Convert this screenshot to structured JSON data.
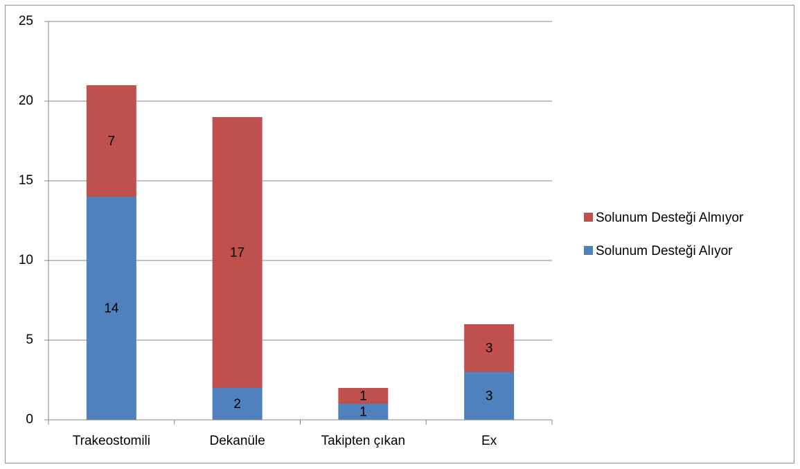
{
  "chart_data": {
    "type": "bar",
    "stacked": true,
    "categories": [
      "Trakeostomili",
      "Dekanüle",
      "Takipten çıkan",
      "Ex"
    ],
    "series": [
      {
        "name": "Solunum Desteği Alıyor",
        "color": "#4f81bd",
        "values": [
          14,
          2,
          1,
          3
        ]
      },
      {
        "name": "Solunum Desteği Almıyor",
        "color": "#c0504d",
        "values": [
          7,
          17,
          1,
          3
        ]
      }
    ],
    "ylim": [
      0,
      25
    ],
    "yticks": [
      0,
      5,
      10,
      15,
      20,
      25
    ],
    "grid": true,
    "legend": "right",
    "data_labels": true
  }
}
